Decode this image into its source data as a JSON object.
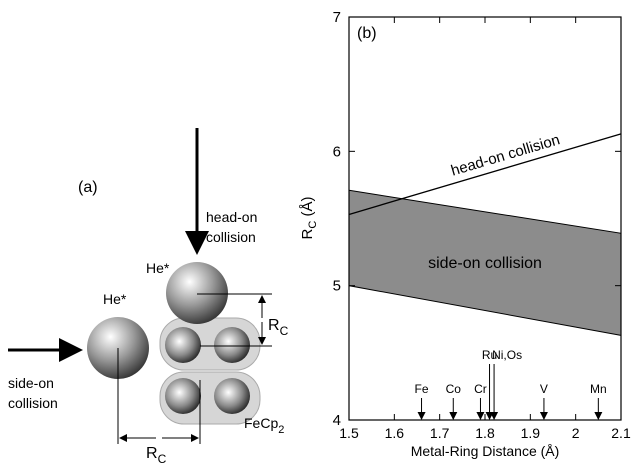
{
  "diagram": {
    "label": "(a)",
    "head_on": [
      "head-on",
      "collision"
    ],
    "side_on": [
      "side-on",
      "collision"
    ],
    "atom_top": "He*",
    "atom_side": "He*",
    "rc_vertical": {
      "main": "R",
      "sub": "C"
    },
    "rc_horizontal": {
      "main": "R",
      "sub": "C"
    },
    "molecule": {
      "main": "FeCp",
      "sub": "2"
    }
  },
  "chart_data": {
    "type": "line",
    "panel_label": "(b)",
    "x_label": "Metal-Ring Distance (Å)",
    "y_label": {
      "main": "R",
      "sub": "C",
      "unit": " (Å)"
    },
    "xlim": [
      1.5,
      2.1
    ],
    "ylim": [
      4,
      7
    ],
    "xticks": [
      1.5,
      1.6,
      1.7,
      1.8,
      1.9,
      2,
      2.1
    ],
    "yticks": [
      4,
      5,
      6,
      7
    ],
    "x": [
      1.5,
      2.1
    ],
    "series": [
      {
        "name": "head-on collision",
        "color": "#000000",
        "values": [
          5.53,
          6.13
        ]
      }
    ],
    "band": {
      "name": "side-on collision",
      "color": "#8c8c8c",
      "upper": [
        5.71,
        5.39
      ],
      "lower": [
        5.0,
        4.63
      ]
    },
    "markers": [
      {
        "label": "Fe",
        "x": 1.66
      },
      {
        "label": "Co",
        "x": 1.73
      },
      {
        "label": "Cr",
        "x": 1.79
      },
      {
        "label": "Ru",
        "x": 1.81
      },
      {
        "label": "Ni,Os",
        "x": 1.82
      },
      {
        "label": "V",
        "x": 1.93
      },
      {
        "label": "Mn",
        "x": 2.05
      }
    ]
  }
}
